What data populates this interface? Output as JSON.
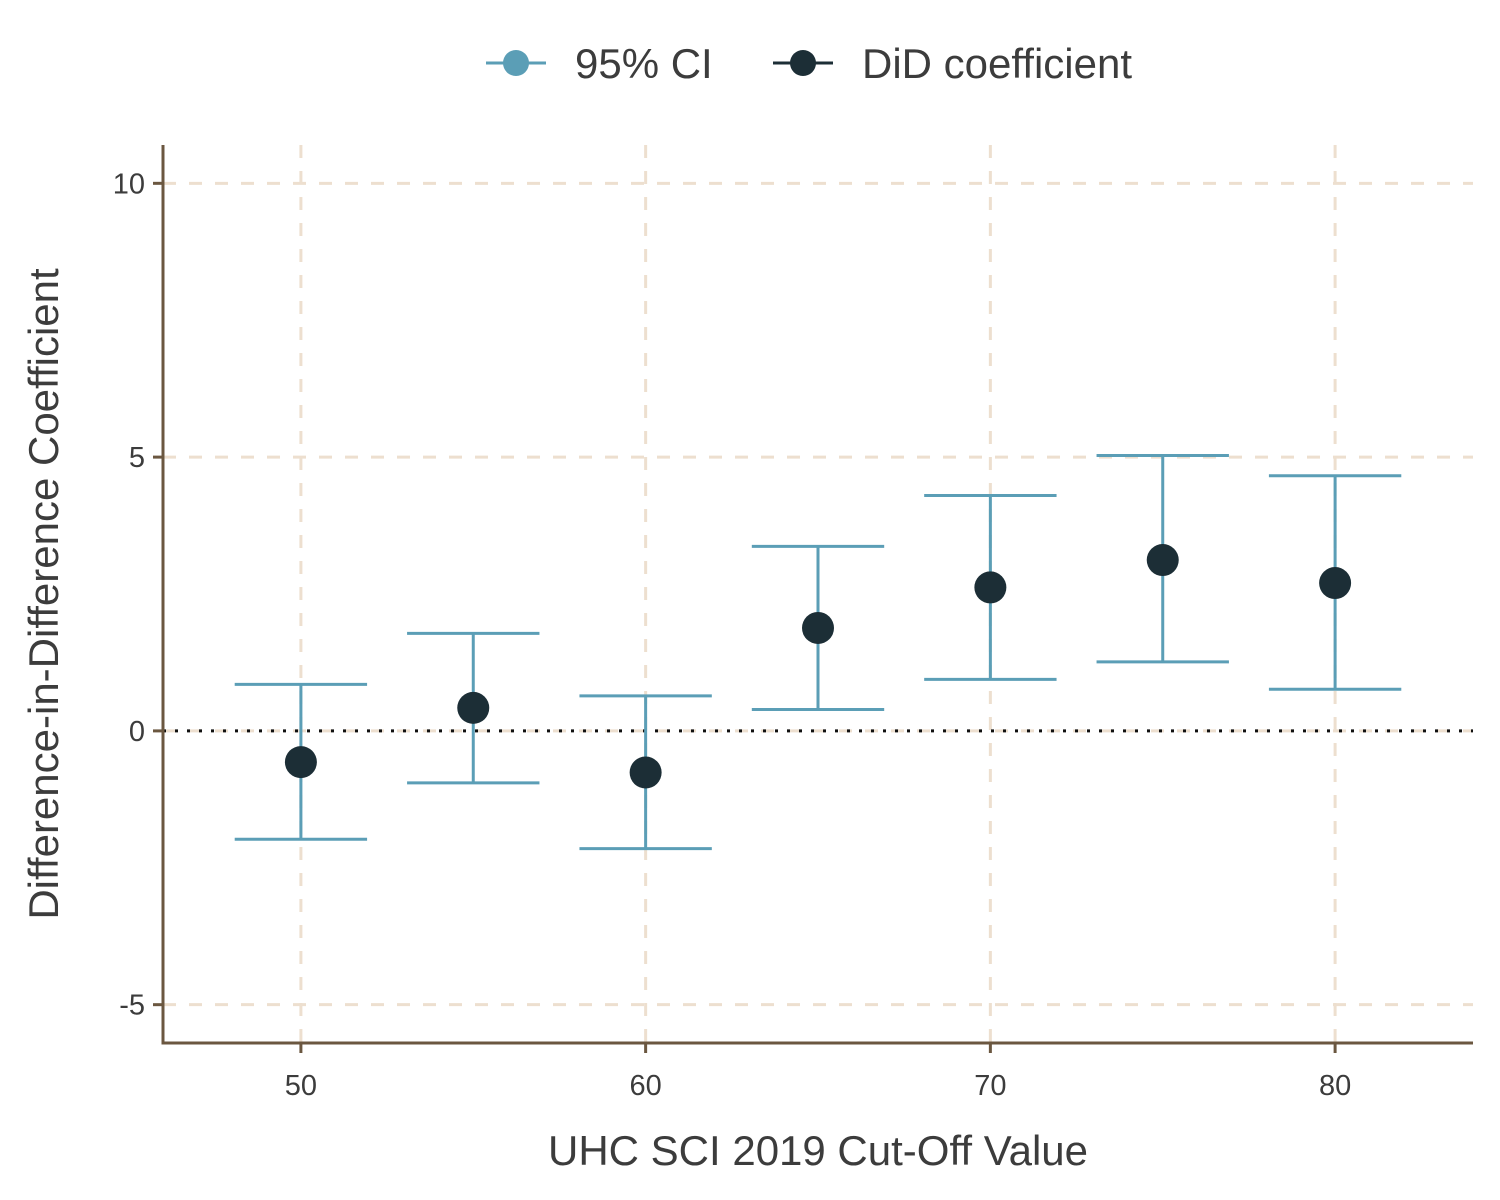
{
  "chart_data": {
    "type": "scatter",
    "x": [
      50,
      55,
      60,
      65,
      70,
      75,
      80
    ],
    "series": [
      {
        "name": "DiD coefficient",
        "values": [
          -0.57,
          0.42,
          -0.76,
          1.88,
          2.62,
          3.12,
          2.7
        ],
        "color": "#1c2e36"
      },
      {
        "name": "95% CI",
        "lower": [
          -1.98,
          -0.95,
          -2.15,
          0.39,
          0.94,
          1.26,
          0.76
        ],
        "upper": [
          0.85,
          1.78,
          0.64,
          3.37,
          4.3,
          5.03,
          4.66
        ],
        "color": "#5b9eb6"
      }
    ],
    "xlabel": "UHC SCI 2019 Cut-Off Value",
    "ylabel": "Difference-in-Difference Coefficient",
    "xticks": [
      50,
      60,
      70,
      80
    ],
    "yticks": [
      -5,
      0,
      5,
      10
    ],
    "ytick_labels": [
      "-5",
      "0",
      "5",
      "10"
    ],
    "xlim": [
      46,
      84
    ],
    "ylim": [
      -5.7,
      10.7
    ],
    "reference_line": 0,
    "grid": true,
    "grid_color": "#eddfcf",
    "axis_color": "#6b5740",
    "legend_position": "top"
  }
}
